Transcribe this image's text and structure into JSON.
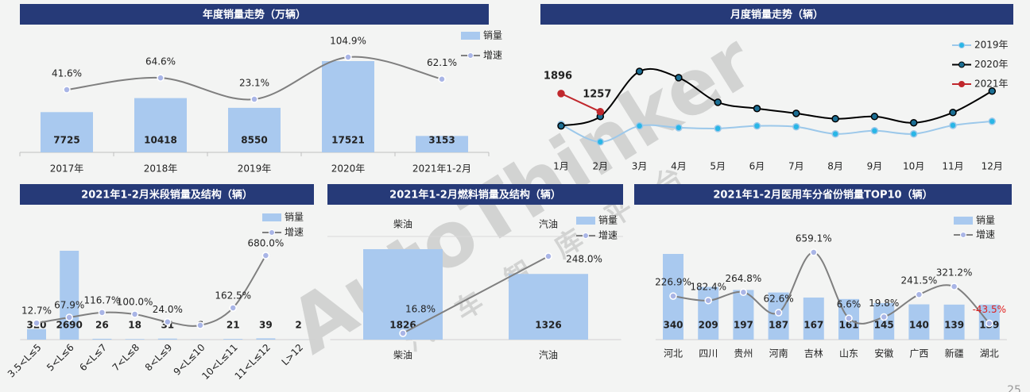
{
  "watermark": "AutoThinker",
  "watermark_sub": "汽车智库平台",
  "page_number": "25",
  "chart_data": [
    {
      "type": "combo",
      "title": "年度销量走势（万辆）",
      "categories": [
        "2017年",
        "2018年",
        "2019年",
        "2020年",
        "2021年1-2月"
      ],
      "series": [
        {
          "name": "销量",
          "type": "bar",
          "color": "#a9c9ef",
          "values": [
            7725,
            10418,
            8550,
            17521,
            3153
          ]
        },
        {
          "name": "增速",
          "type": "line",
          "color": "#7f7f7f",
          "marker_color": "#a9b5e6",
          "values": [
            41.6,
            64.6,
            23.1,
            104.9,
            62.1
          ],
          "value_labels": [
            "41.6%",
            "64.6%",
            "23.1%",
            "104.9%",
            "62.1%"
          ]
        }
      ]
    },
    {
      "type": "line",
      "title": "月度销量走势（辆）",
      "categories": [
        "1月",
        "2月",
        "3月",
        "4月",
        "5月",
        "6月",
        "7月",
        "8月",
        "9月",
        "10月",
        "11月",
        "12月"
      ],
      "series": [
        {
          "name": "2019年",
          "color": "#9cc8ea",
          "marker_color": "#29b6e6",
          "values": [
            810,
            200,
            760,
            700,
            670,
            760,
            730,
            480,
            590,
            480,
            780,
            920
          ]
        },
        {
          "name": "2020年",
          "color": "#000000",
          "marker_color": "#1b6e93",
          "values": [
            760,
            1090,
            2670,
            2450,
            1590,
            1370,
            1200,
            1010,
            1090,
            870,
            1230,
            1980
          ]
        },
        {
          "name": "2021年",
          "color": "#c0282d",
          "marker_color": "#c0282d",
          "data_labels": true,
          "values": [
            1896,
            1257,
            null,
            null,
            null,
            null,
            null,
            null,
            null,
            null,
            null,
            null
          ]
        }
      ]
    },
    {
      "type": "combo",
      "title": "2021年1-2月米段销量及结构（辆）",
      "categories": [
        "3.5<L≤5",
        "5<L≤6",
        "6<L≤7",
        "7<L≤8",
        "8<L≤9",
        "9<L≤10",
        "10<L≤11",
        "11<L≤12",
        "L>12"
      ],
      "series": [
        {
          "name": "销量",
          "type": "bar",
          "color": "#a9c9ef",
          "values": [
            320,
            2690,
            26,
            18,
            31,
            6,
            21,
            39,
            2
          ]
        },
        {
          "name": "增速",
          "type": "line",
          "color": "#7f7f7f",
          "marker_color": "#a9b5e6",
          "values": [
            12.7,
            67.9,
            116.7,
            100.0,
            24.0,
            -10,
            162.5,
            680.0,
            null
          ],
          "value_labels": [
            "12.7%",
            "67.9%",
            "116.7%",
            "100.0%",
            "24.0%",
            null,
            "162.5%",
            "680.0%",
            null
          ]
        }
      ]
    },
    {
      "type": "combo",
      "title": "2021年1-2月燃料销量及结构（辆）",
      "top_labels": true,
      "categories": [
        "柴油",
        "汽油"
      ],
      "series": [
        {
          "name": "销量",
          "type": "bar",
          "color": "#a9c9ef",
          "values": [
            1826,
            1326
          ]
        },
        {
          "name": "增速",
          "type": "line",
          "color": "#7f7f7f",
          "marker_color": "#a9b5e6",
          "values": [
            16.8,
            248.0
          ],
          "value_labels": [
            "16.8%",
            "248.0%"
          ]
        }
      ]
    },
    {
      "type": "combo",
      "title": "2021年1-2月医用车分省份销量TOP10（辆）",
      "categories": [
        "河北",
        "四川",
        "贵州",
        "河南",
        "吉林",
        "山东",
        "安徽",
        "广西",
        "新疆",
        "湖北"
      ],
      "series": [
        {
          "name": "销量",
          "type": "bar",
          "color": "#a9c9ef",
          "values": [
            340,
            209,
            197,
            187,
            167,
            161,
            145,
            140,
            139,
            139
          ]
        },
        {
          "name": "增速",
          "type": "line",
          "color": "#7f7f7f",
          "marker_color": "#a9b5e6",
          "negative_color": "#e02020",
          "values": [
            226.9,
            182.4,
            264.8,
            62.6,
            659.1,
            6.6,
            19.8,
            241.5,
            321.2,
            -43.5
          ],
          "value_labels": [
            "226.9%",
            "182.4%",
            "264.8%",
            "62.6%",
            "659.1%",
            "6.6%",
            "19.8%",
            "241.5%",
            "321.2%",
            "-43.5%"
          ]
        }
      ]
    }
  ]
}
